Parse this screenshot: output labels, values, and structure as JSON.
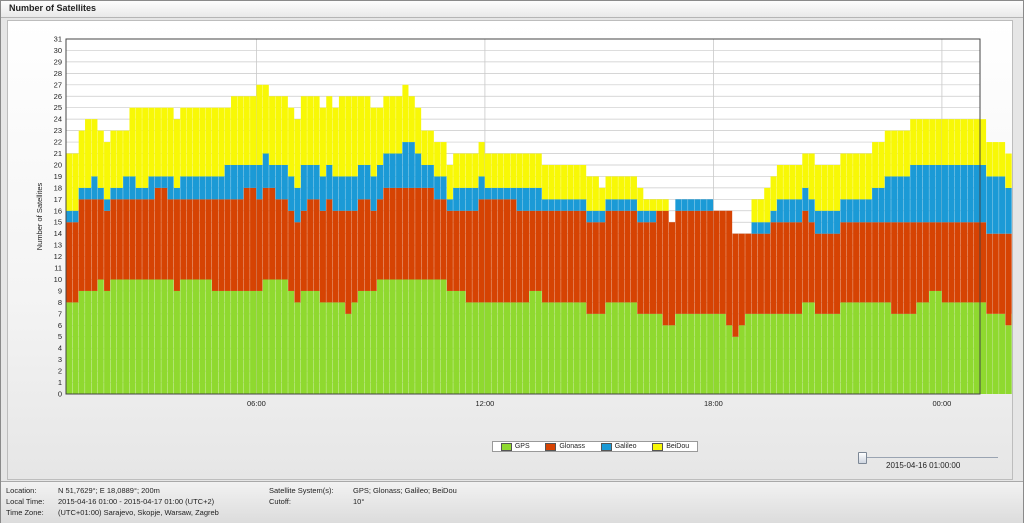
{
  "window": {
    "title": "Number of Satellites"
  },
  "colors": {
    "GPS": "#8fd92f",
    "Glonass": "#d64303",
    "Galileo": "#1b9ad6",
    "BeiDou": "#f8f806",
    "grid": "#c9c9c9",
    "plot_bg": "#ffffff"
  },
  "slider": {
    "label": "2015-04-16 01:00:00",
    "position": 0.0
  },
  "info": {
    "location_label": "Location:",
    "location_value": "N 51,7629°; E 18,0889°; 200m",
    "local_time_label": "Local Time:",
    "local_time_value": "2015-04-16 01:00 - 2015-04-17 01:00 (UTC+2)",
    "time_zone_label": "Time Zone:",
    "time_zone_value": "(UTC+01:00) Sarajevo, Skopje, Warsaw, Zagreb",
    "systems_label": "Satellite System(s):",
    "systems_value": "GPS; Glonass; Galileo; BeiDou",
    "cutoff_label": "Cutoff:",
    "cutoff_value": "10°"
  },
  "chart_data": {
    "type": "bar",
    "stacked": true,
    "title": "",
    "xlabel": "",
    "ylabel": "Number of Satellites",
    "ylim": [
      0,
      31
    ],
    "yticks": [
      0,
      1,
      2,
      3,
      4,
      5,
      6,
      7,
      8,
      9,
      10,
      11,
      12,
      13,
      14,
      15,
      16,
      17,
      18,
      19,
      20,
      21,
      22,
      23,
      24,
      25,
      26,
      27,
      28,
      29,
      30,
      31
    ],
    "xlim": [
      1,
      25
    ],
    "xticks": [
      {
        "value": 6,
        "label": "06:00"
      },
      {
        "value": 12,
        "label": "12:00"
      },
      {
        "value": 18,
        "label": "18:00"
      },
      {
        "value": 24,
        "label": "00:00"
      }
    ],
    "grid": true,
    "legend_position": "bottom-center",
    "legend": [
      "GPS",
      "Glonass",
      "Galileo",
      "BeiDou"
    ],
    "x_units": "hour of day (10-minute steps, 24 steps after 00:00 shown as 24)",
    "x_start": 1.0,
    "x_step": 0.16667,
    "series": [
      {
        "name": "GPS",
        "values": [
          8,
          8,
          9,
          9,
          9,
          10,
          9,
          10,
          10,
          10,
          10,
          10,
          10,
          10,
          10,
          10,
          10,
          9,
          10,
          10,
          10,
          10,
          10,
          9,
          9,
          9,
          9,
          9,
          9,
          9,
          9,
          10,
          10,
          10,
          10,
          9,
          8,
          9,
          9,
          9,
          8,
          8,
          8,
          8,
          7,
          8,
          9,
          9,
          9,
          10,
          10,
          10,
          10,
          10,
          10,
          10,
          10,
          10,
          10,
          10,
          9,
          9,
          9,
          8,
          8,
          8,
          8,
          8,
          8,
          8,
          8,
          8,
          8,
          9,
          9,
          8,
          8,
          8,
          8,
          8,
          8,
          8,
          7,
          7,
          7,
          8,
          8,
          8,
          8,
          8,
          7,
          7,
          7,
          7,
          6,
          6,
          7,
          7,
          7,
          7,
          7,
          7,
          7,
          7,
          6,
          5,
          6,
          7,
          7,
          7,
          7,
          7,
          7,
          7,
          7,
          7,
          8,
          8,
          7,
          7,
          7,
          7,
          8,
          8,
          8,
          8,
          8,
          8,
          8,
          8,
          7,
          7,
          7,
          7,
          8,
          8,
          9,
          9,
          8,
          8,
          8,
          8,
          8,
          8,
          8,
          7,
          7,
          7,
          6,
          7,
          6,
          6,
          6,
          6,
          7,
          7,
          8,
          8,
          8,
          8,
          8,
          8,
          8,
          7,
          8
        ]
      },
      {
        "name": "Glonass",
        "values": [
          7,
          7,
          8,
          8,
          8,
          7,
          7,
          7,
          7,
          7,
          7,
          7,
          7,
          7,
          8,
          8,
          7,
          8,
          7,
          7,
          7,
          7,
          7,
          8,
          8,
          8,
          8,
          8,
          9,
          9,
          8,
          8,
          8,
          7,
          7,
          7,
          7,
          7,
          8,
          8,
          8,
          9,
          8,
          8,
          9,
          8,
          8,
          8,
          7,
          7,
          8,
          8,
          8,
          8,
          8,
          8,
          8,
          8,
          7,
          7,
          7,
          7,
          7,
          8,
          8,
          9,
          9,
          9,
          9,
          9,
          9,
          8,
          8,
          7,
          7,
          8,
          8,
          8,
          8,
          8,
          8,
          8,
          8,
          8,
          8,
          8,
          8,
          8,
          8,
          8,
          8,
          8,
          8,
          9,
          10,
          9,
          9,
          9,
          9,
          9,
          9,
          9,
          9,
          9,
          10,
          9,
          8,
          7,
          7,
          7,
          7,
          8,
          8,
          8,
          8,
          8,
          8,
          7,
          7,
          7,
          7,
          7,
          7,
          7,
          7,
          7,
          7,
          7,
          7,
          7,
          8,
          8,
          8,
          8,
          7,
          7,
          6,
          6,
          7,
          7,
          7,
          7,
          7,
          7,
          7,
          7,
          7,
          7,
          8,
          7,
          8,
          8,
          8,
          8,
          7,
          7,
          8,
          8,
          8,
          8,
          8,
          8,
          8,
          8,
          9
        ]
      },
      {
        "name": "Galileo",
        "values": [
          1,
          1,
          1,
          1,
          2,
          1,
          1,
          1,
          1,
          2,
          2,
          1,
          1,
          2,
          1,
          1,
          2,
          1,
          2,
          2,
          2,
          2,
          2,
          2,
          2,
          3,
          3,
          3,
          2,
          2,
          3,
          3,
          2,
          3,
          3,
          3,
          3,
          4,
          3,
          3,
          3,
          3,
          3,
          3,
          3,
          3,
          3,
          3,
          3,
          3,
          3,
          3,
          3,
          4,
          4,
          3,
          2,
          2,
          2,
          2,
          1,
          2,
          2,
          2,
          2,
          2,
          1,
          1,
          1,
          1,
          1,
          2,
          2,
          2,
          2,
          1,
          1,
          1,
          1,
          1,
          1,
          1,
          1,
          1,
          1,
          1,
          1,
          1,
          1,
          1,
          1,
          1,
          1,
          0,
          0,
          0,
          1,
          1,
          1,
          1,
          1,
          1,
          0,
          0,
          0,
          0,
          0,
          0,
          1,
          1,
          1,
          1,
          2,
          2,
          2,
          2,
          2,
          2,
          2,
          2,
          2,
          2,
          2,
          2,
          2,
          2,
          2,
          3,
          3,
          4,
          4,
          4,
          4,
          5,
          5,
          5,
          5,
          5,
          5,
          5,
          5,
          5,
          5,
          5,
          5,
          5,
          5,
          5,
          4,
          4,
          4,
          4,
          4,
          4,
          4,
          4,
          4,
          4,
          4,
          4,
          4,
          4,
          4,
          4,
          3
        ]
      },
      {
        "name": "BeiDou",
        "values": [
          5,
          5,
          5,
          6,
          5,
          5,
          5,
          5,
          5,
          4,
          6,
          7,
          7,
          6,
          6,
          6,
          6,
          6,
          6,
          6,
          6,
          6,
          6,
          6,
          6,
          5,
          6,
          6,
          6,
          6,
          7,
          6,
          6,
          6,
          6,
          6,
          6,
          6,
          6,
          6,
          6,
          6,
          6,
          7,
          7,
          7,
          6,
          6,
          6,
          5,
          5,
          5,
          5,
          5,
          4,
          4,
          3,
          3,
          3,
          3,
          3,
          3,
          3,
          3,
          3,
          3,
          3,
          3,
          3,
          3,
          3,
          3,
          3,
          3,
          3,
          3,
          3,
          3,
          3,
          3,
          3,
          3,
          3,
          3,
          2,
          2,
          2,
          2,
          2,
          2,
          2,
          1,
          1,
          1,
          1,
          0,
          0,
          0,
          0,
          0,
          0,
          0,
          0,
          0,
          0,
          0,
          0,
          0,
          2,
          2,
          3,
          3,
          3,
          3,
          3,
          3,
          3,
          4,
          4,
          4,
          4,
          4,
          4,
          4,
          4,
          4,
          4,
          4,
          4,
          4,
          4,
          4,
          4,
          4,
          4,
          4,
          4,
          4,
          4,
          4,
          4,
          4,
          4,
          4,
          4,
          3,
          3,
          3,
          3,
          3,
          3,
          3,
          3,
          3,
          3,
          3,
          3,
          3,
          3,
          3,
          3,
          3,
          3,
          3,
          3
        ]
      }
    ]
  }
}
